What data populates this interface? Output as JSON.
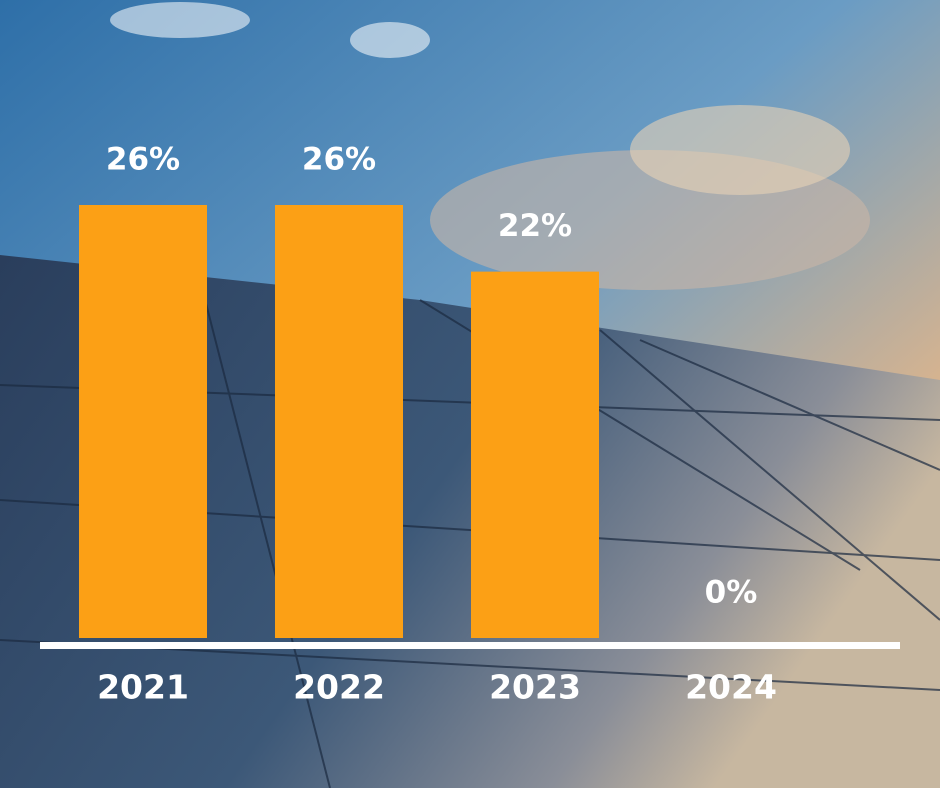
{
  "chart_data": {
    "type": "bar",
    "categories": [
      "2021",
      "2022",
      "2023",
      "2024"
    ],
    "values": [
      26,
      26,
      22,
      0
    ],
    "value_labels": [
      "26%",
      "26%",
      "22%",
      "0%"
    ],
    "color": "#fca015"
  }
}
